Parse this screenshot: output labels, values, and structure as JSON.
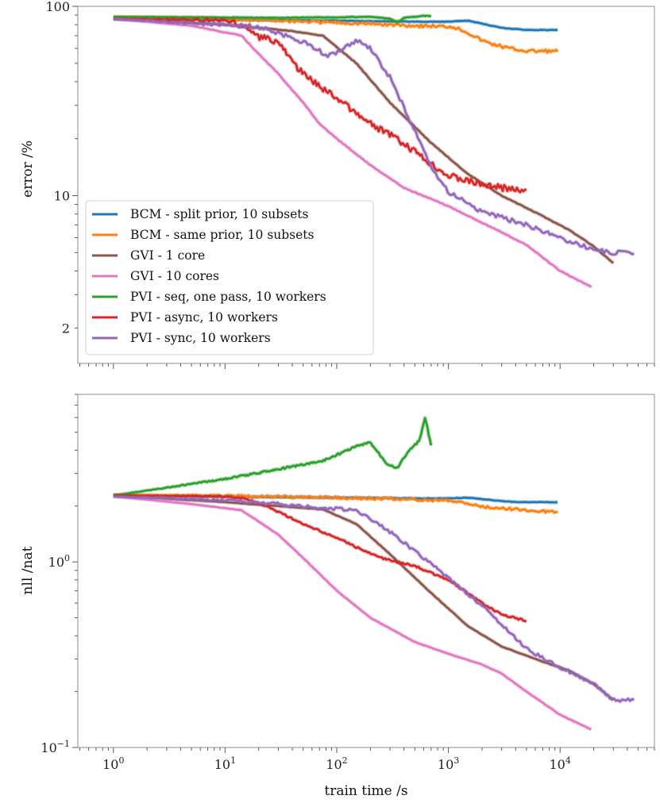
{
  "chart_data": [
    {
      "type": "line",
      "id": "top",
      "ylabel": "error /%",
      "xlabel": "",
      "xscale": "log",
      "yscale": "log",
      "xlim": [
        0.48,
        70000
      ],
      "ylim": [
        1.3,
        100
      ],
      "x_ticks": [
        {
          "value": 1,
          "base": "10",
          "exp": "0"
        },
        {
          "value": 10,
          "base": "10",
          "exp": "1"
        },
        {
          "value": 100,
          "base": "10",
          "exp": "2"
        },
        {
          "value": 1000,
          "base": "10",
          "exp": "3"
        },
        {
          "value": 10000,
          "base": "10",
          "exp": "4"
        }
      ],
      "x_ticklabels_visible": false,
      "y_ticks": [
        {
          "value": 2,
          "label": "2"
        },
        {
          "value": 10,
          "label": "10"
        },
        {
          "value": 100,
          "label": "100"
        }
      ],
      "legend": "upper-left",
      "series": [
        {
          "name": "BCM - split prior, 10 subsets",
          "color": "#1f77b4",
          "x": [
            1,
            10,
            100,
            500,
            1000,
            1500,
            2200,
            3000,
            5000,
            7000,
            9500
          ],
          "y": [
            86,
            85,
            84,
            83,
            83,
            84,
            80,
            77,
            75,
            75,
            75
          ],
          "noise": 0.4
        },
        {
          "name": "BCM - same prior, 10 subsets",
          "color": "#ff7f0e",
          "x": [
            1,
            10,
            100,
            500,
            1100,
            1400,
            2000,
            2500,
            3500,
            5000,
            7000,
            9500
          ],
          "y": [
            88,
            86,
            82,
            79,
            78,
            74,
            66,
            63,
            60,
            58,
            58,
            58
          ],
          "noise": 2.5
        },
        {
          "name": "GVI - 1 core",
          "color": "#8c564b",
          "x": [
            1,
            10,
            40,
            75,
            150,
            300,
            700,
            1500,
            3000,
            7000,
            12000,
            20000,
            30000
          ],
          "y": [
            86,
            80,
            74,
            70,
            50,
            31,
            19,
            13,
            10,
            7.8,
            6.6,
            5.4,
            4.4
          ],
          "noise": 0.5
        },
        {
          "name": "GVI - 10 cores",
          "color": "#e377c2",
          "x": [
            1,
            5,
            14,
            20,
            30,
            50,
            70,
            100,
            200,
            400,
            1000,
            2000,
            5000,
            10000,
            19000
          ],
          "y": [
            86,
            79,
            70,
            56,
            44,
            31,
            24,
            20,
            14.5,
            11,
            8.8,
            7.2,
            5.5,
            4.0,
            3.3
          ],
          "noise": 0.6
        },
        {
          "name": "PVI - seq, one pass, 10 workers",
          "color": "#2ca02c",
          "x": [
            1,
            30,
            200,
            300,
            350,
            400,
            500,
            600,
            700
          ],
          "y": [
            88,
            87,
            88,
            86,
            82,
            87,
            88,
            89,
            89
          ],
          "noise": 0.5
        },
        {
          "name": "PVI - async, 10 workers",
          "color": "#d62728",
          "x": [
            1,
            10,
            15,
            20,
            30,
            40,
            50,
            70,
            100,
            150,
            200,
            300,
            500,
            800,
            1000,
            2000,
            3000,
            5000
          ],
          "y": [
            86,
            84,
            78,
            69,
            65,
            51,
            44,
            38,
            33,
            27,
            24,
            21,
            17,
            14,
            12.8,
            11.5,
            11,
            10.5
          ],
          "noise": 5.0
        },
        {
          "name": "PVI - sync, 10 workers",
          "color": "#9467bd",
          "x": [
            1,
            20,
            60,
            80,
            100,
            150,
            200,
            300,
            500,
            700,
            1000,
            2000,
            5000,
            10000,
            20000,
            30000,
            46000
          ],
          "y": [
            86,
            78,
            62,
            55,
            57,
            66,
            60,
            42,
            22,
            14,
            10.5,
            8.2,
            7.0,
            6.0,
            5.2,
            5.0,
            5.0
          ],
          "noise": 3.5
        }
      ]
    },
    {
      "type": "line",
      "id": "bottom",
      "ylabel": "nll /nat",
      "xlabel": "train time /s",
      "xscale": "log",
      "yscale": "log",
      "xlim": [
        0.48,
        70000
      ],
      "ylim": [
        0.1,
        8
      ],
      "x_ticks": [
        {
          "value": 1,
          "base": "10",
          "exp": "0"
        },
        {
          "value": 10,
          "base": "10",
          "exp": "1"
        },
        {
          "value": 100,
          "base": "10",
          "exp": "2"
        },
        {
          "value": 1000,
          "base": "10",
          "exp": "3"
        },
        {
          "value": 10000,
          "base": "10",
          "exp": "4"
        }
      ],
      "x_ticklabels_visible": true,
      "y_ticks": [
        {
          "value": 0.1,
          "base": "10",
          "exp": "−1"
        },
        {
          "value": 1,
          "base": "10",
          "exp": "0"
        }
      ],
      "series": [
        {
          "name": "BCM - split prior, 10 subsets",
          "color": "#1f77b4",
          "x": [
            1,
            10,
            100,
            500,
            1000,
            1500,
            2500,
            4000,
            9500
          ],
          "y": [
            2.28,
            2.25,
            2.22,
            2.2,
            2.2,
            2.22,
            2.15,
            2.1,
            2.1
          ],
          "noise": 0.4
        },
        {
          "name": "BCM - same prior, 10 subsets",
          "color": "#ff7f0e",
          "x": [
            1,
            10,
            100,
            500,
            1100,
            1400,
            2000,
            3000,
            5000,
            9500
          ],
          "y": [
            2.3,
            2.27,
            2.22,
            2.17,
            2.13,
            2.08,
            1.98,
            1.95,
            1.9,
            1.85
          ],
          "noise": 2.0
        },
        {
          "name": "GVI - 1 core",
          "color": "#8c564b",
          "x": [
            1,
            10,
            30,
            75,
            150,
            300,
            700,
            1500,
            3000,
            7000,
            12000,
            20000,
            30000
          ],
          "y": [
            2.28,
            2.1,
            2.0,
            1.92,
            1.6,
            1.1,
            0.68,
            0.45,
            0.35,
            0.29,
            0.26,
            0.22,
            0.18
          ],
          "noise": 0.3
        },
        {
          "name": "GVI - 10 cores",
          "color": "#e377c2",
          "x": [
            1,
            5,
            14,
            20,
            30,
            50,
            100,
            200,
            500,
            1000,
            2000,
            3000,
            5000,
            10000,
            19000
          ],
          "y": [
            2.26,
            2.05,
            1.9,
            1.65,
            1.4,
            1.05,
            0.7,
            0.5,
            0.37,
            0.32,
            0.28,
            0.25,
            0.2,
            0.15,
            0.125
          ],
          "noise": 0.3
        },
        {
          "name": "PVI - seq, one pass, 10 workers",
          "color": "#2ca02c",
          "x": [
            1,
            10,
            75,
            150,
            200,
            280,
            350,
            430,
            550,
            620,
            700
          ],
          "y": [
            2.28,
            2.8,
            3.5,
            4.2,
            4.4,
            3.4,
            3.2,
            3.9,
            4.5,
            6.0,
            4.2
          ],
          "noise": 1.5
        },
        {
          "name": "PVI - async, 10 workers",
          "color": "#d62728",
          "x": [
            1,
            10,
            15,
            25,
            50,
            100,
            150,
            250,
            500,
            1000,
            2000,
            3000,
            5000
          ],
          "y": [
            2.28,
            2.25,
            2.2,
            1.97,
            1.6,
            1.35,
            1.2,
            1.05,
            0.95,
            0.8,
            0.6,
            0.52,
            0.48
          ],
          "noise": 1.5
        },
        {
          "name": "PVI - sync, 10 workers",
          "color": "#9467bd",
          "x": [
            1,
            10,
            30,
            75,
            150,
            300,
            700,
            2000,
            5000,
            10000,
            20000,
            30000,
            46000
          ],
          "y": [
            2.25,
            2.15,
            2.05,
            1.95,
            1.9,
            1.45,
            0.98,
            0.58,
            0.34,
            0.27,
            0.22,
            0.18,
            0.18
          ],
          "noise": 2.5
        }
      ]
    }
  ]
}
